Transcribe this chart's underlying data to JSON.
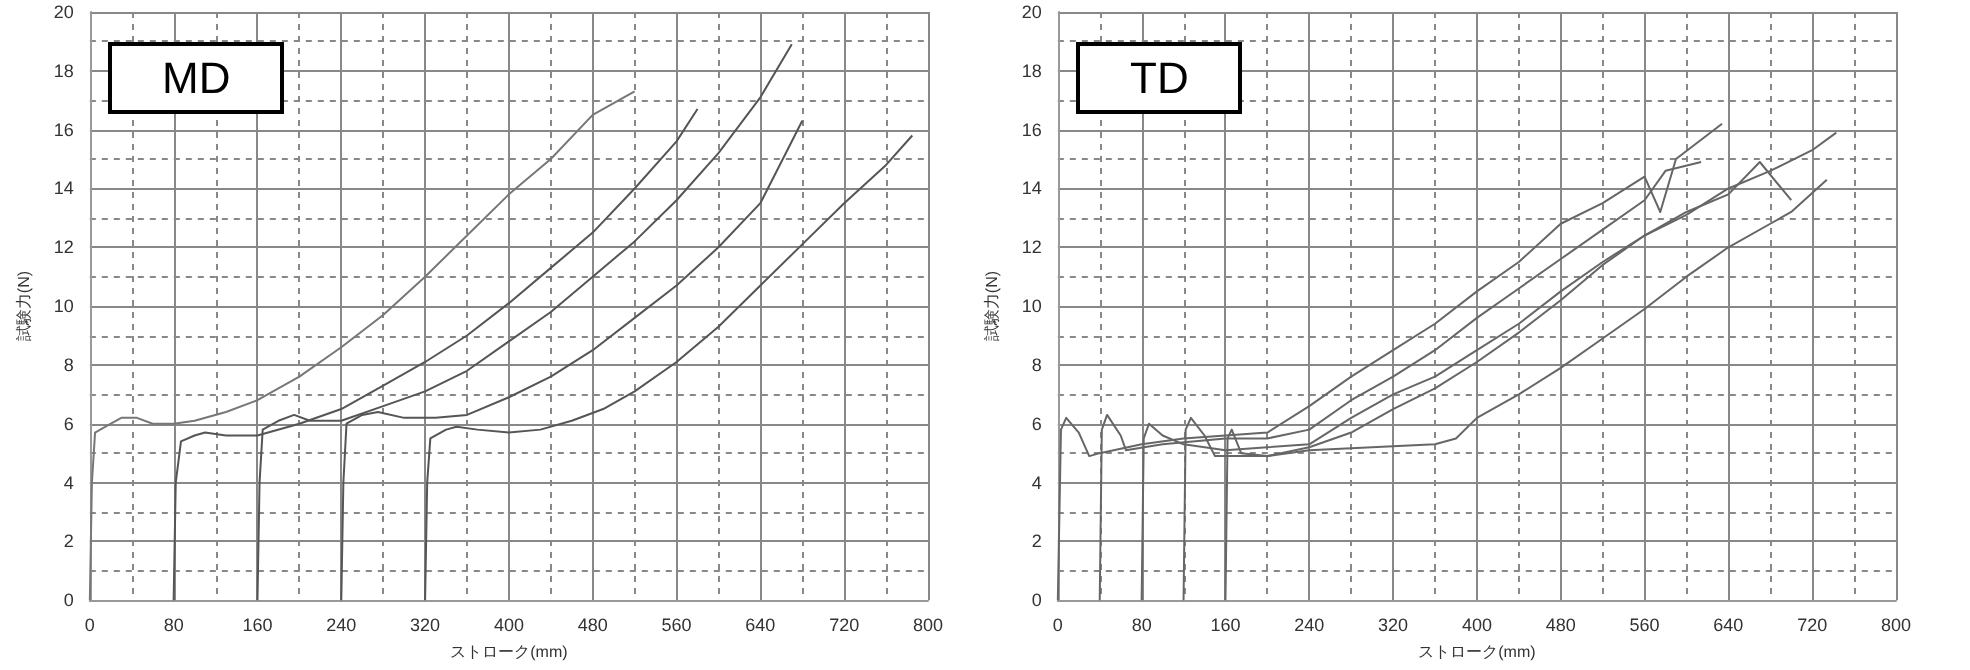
{
  "chart_data": [
    {
      "type": "line",
      "title": "MD",
      "xlabel": "ストローク(mm)",
      "ylabel": "試験力(N)",
      "xlim": [
        0,
        800
      ],
      "xticks": [
        0,
        80,
        160,
        240,
        320,
        400,
        480,
        560,
        640,
        720,
        800
      ],
      "ylim": [
        0,
        20
      ],
      "yticks": [
        0,
        2,
        4,
        6,
        8,
        10,
        12,
        14,
        16,
        18,
        20
      ],
      "grid": true,
      "marker": "none",
      "line_style": "solid",
      "series": [
        {
          "color": "#777777",
          "x": [
            0,
            2,
            5,
            15,
            30,
            45,
            60,
            80,
            100,
            130,
            160,
            200,
            240,
            280,
            320,
            360,
            400,
            440,
            480,
            520
          ],
          "values": [
            0,
            4,
            5.7,
            5.9,
            6.2,
            6.2,
            6.0,
            6.0,
            6.1,
            6.4,
            6.8,
            7.6,
            8.6,
            9.7,
            11.0,
            12.4,
            13.8,
            15.0,
            16.5,
            17.3
          ]
        },
        {
          "color": "#555555",
          "x": [
            80,
            82,
            87,
            100,
            110,
            130,
            160,
            200,
            240,
            280,
            320,
            360,
            400,
            440,
            480,
            520,
            560,
            580
          ],
          "values": [
            0,
            4,
            5.4,
            5.6,
            5.7,
            5.6,
            5.6,
            6.0,
            6.5,
            7.3,
            8.1,
            9.0,
            10.1,
            11.3,
            12.5,
            14.0,
            15.6,
            16.7
          ]
        },
        {
          "color": "#555555",
          "x": [
            160,
            162,
            165,
            180,
            195,
            210,
            240,
            280,
            320,
            360,
            400,
            440,
            480,
            520,
            560,
            600,
            640,
            670
          ],
          "values": [
            0,
            4,
            5.8,
            6.1,
            6.3,
            6.1,
            6.1,
            6.6,
            7.1,
            7.8,
            8.8,
            9.8,
            11.0,
            12.2,
            13.6,
            15.2,
            17.1,
            18.9
          ]
        },
        {
          "color": "#555555",
          "x": [
            240,
            242,
            245,
            260,
            275,
            300,
            330,
            360,
            400,
            440,
            480,
            520,
            560,
            600,
            640,
            680
          ],
          "values": [
            0,
            4,
            6.0,
            6.3,
            6.4,
            6.2,
            6.2,
            6.3,
            6.9,
            7.6,
            8.5,
            9.6,
            10.7,
            12.0,
            13.5,
            16.3
          ]
        },
        {
          "color": "#555555",
          "x": [
            320,
            322,
            325,
            340,
            350,
            370,
            400,
            430,
            460,
            490,
            520,
            560,
            600,
            640,
            680,
            720,
            760,
            785
          ],
          "values": [
            0,
            4,
            5.5,
            5.8,
            5.9,
            5.8,
            5.7,
            5.8,
            6.1,
            6.5,
            7.1,
            8.1,
            9.3,
            10.7,
            12.1,
            13.5,
            14.8,
            15.8
          ]
        }
      ]
    },
    {
      "type": "line",
      "title": "TD",
      "xlabel": "ストローク(mm)",
      "ylabel": "試験力(N)",
      "xlim": [
        0,
        800
      ],
      "xticks": [
        0,
        80,
        160,
        240,
        320,
        400,
        480,
        560,
        640,
        720,
        800
      ],
      "ylim": [
        0,
        20
      ],
      "yticks": [
        0,
        2,
        4,
        6,
        8,
        10,
        12,
        14,
        16,
        18,
        20
      ],
      "grid": true,
      "marker": "none",
      "line_style": "solid",
      "series": [
        {
          "color": "#666666",
          "x": [
            0,
            3,
            8,
            20,
            30,
            40,
            80,
            120,
            160,
            200,
            240,
            280,
            320,
            360,
            400,
            440,
            480,
            520,
            560,
            575,
            590,
            634
          ],
          "values": [
            0,
            5.8,
            6.2,
            5.7,
            4.9,
            5.0,
            5.3,
            5.5,
            5.6,
            5.7,
            6.6,
            7.6,
            8.5,
            9.4,
            10.5,
            11.5,
            12.8,
            13.5,
            14.4,
            13.2,
            15.0,
            16.2
          ]
        },
        {
          "color": "#666666",
          "x": [
            40,
            42,
            47,
            60,
            65,
            100,
            160,
            200,
            240,
            280,
            320,
            360,
            400,
            440,
            480,
            520,
            560,
            580,
            614
          ],
          "values": [
            0,
            5.8,
            6.3,
            5.6,
            5.1,
            5.3,
            5.5,
            5.5,
            5.8,
            6.8,
            7.6,
            8.5,
            9.6,
            10.6,
            11.6,
            12.6,
            13.6,
            14.6,
            14.9
          ]
        },
        {
          "color": "#666666",
          "x": [
            80,
            82,
            87,
            100,
            120,
            160,
            200,
            240,
            280,
            320,
            360,
            400,
            440,
            480,
            520,
            560,
            600,
            640,
            670,
            700
          ],
          "values": [
            0,
            5.5,
            6.0,
            5.6,
            5.3,
            5.1,
            5.2,
            5.3,
            6.2,
            7.0,
            7.6,
            8.5,
            9.4,
            10.5,
            11.5,
            12.4,
            13.2,
            13.8,
            14.9,
            13.6
          ]
        },
        {
          "color": "#666666",
          "x": [
            120,
            122,
            127,
            140,
            150,
            200,
            240,
            280,
            320,
            360,
            400,
            440,
            480,
            520,
            560,
            600,
            640,
            680,
            720,
            743
          ],
          "values": [
            0,
            5.8,
            6.2,
            5.6,
            4.9,
            4.9,
            5.2,
            5.7,
            6.5,
            7.2,
            8.1,
            9.1,
            10.2,
            11.4,
            12.4,
            13.1,
            14.0,
            14.6,
            15.3,
            15.9
          ]
        },
        {
          "color": "#666666",
          "x": [
            160,
            162,
            166,
            175,
            200,
            240,
            300,
            360,
            380,
            400,
            440,
            480,
            520,
            560,
            600,
            640,
            680,
            700,
            734
          ],
          "values": [
            0,
            5.5,
            5.8,
            5.0,
            4.9,
            5.1,
            5.2,
            5.3,
            5.5,
            6.2,
            7.0,
            7.9,
            8.9,
            9.9,
            11.0,
            12.0,
            12.8,
            13.2,
            14.3
          ]
        }
      ]
    }
  ]
}
